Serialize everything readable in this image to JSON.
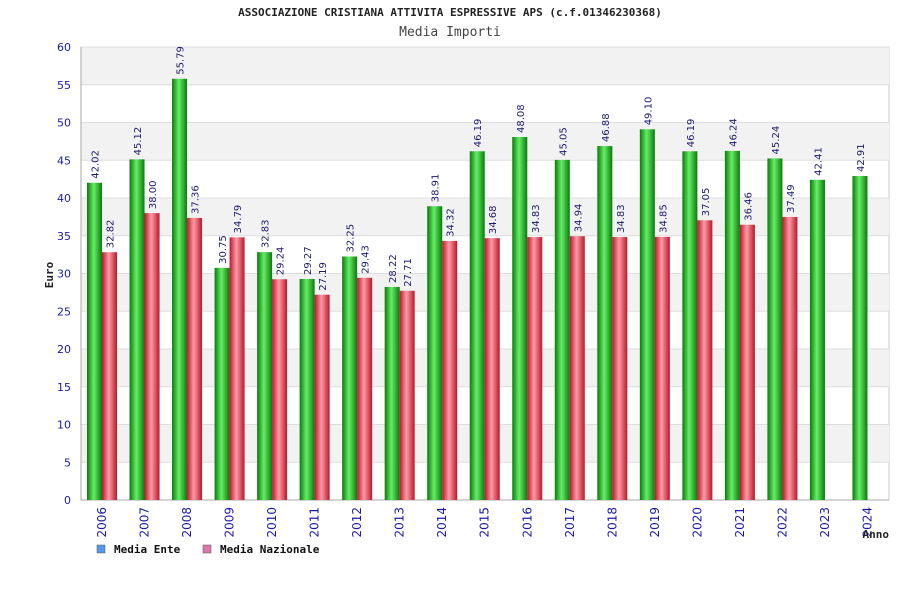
{
  "chart_data": {
    "type": "bar",
    "title": "ASSOCIAZIONE CRISTIANA ATTIVITA ESPRESSIVE APS (c.f.01346230368)",
    "subtitle": "Media Importi",
    "xlabel": "Anno",
    "ylabel": "Euro",
    "ylim": [
      0,
      60
    ],
    "yticks": [
      0,
      5,
      10,
      15,
      20,
      25,
      30,
      35,
      40,
      45,
      50,
      55,
      60
    ],
    "grid": true,
    "legend_position": "bottom-left",
    "categories": [
      "2006",
      "2007",
      "2008",
      "2009",
      "2010",
      "2011",
      "2012",
      "2013",
      "2014",
      "2015",
      "2016",
      "2017",
      "2018",
      "2019",
      "2020",
      "2021",
      "2022",
      "2023",
      "2024"
    ],
    "series": [
      {
        "name": "Media Ente",
        "color": "#22bb22",
        "legend_color": "#5599ee",
        "values": [
          42.02,
          45.12,
          55.79,
          30.75,
          32.83,
          29.27,
          32.25,
          28.22,
          38.91,
          46.19,
          48.08,
          45.05,
          46.88,
          49.1,
          46.19,
          46.24,
          45.24,
          42.41,
          42.91
        ],
        "labels": [
          "42.02",
          "45.12",
          "55.79",
          "30.75",
          "32.83",
          "29.27",
          "32.25",
          "28.22",
          "38.91",
          "46.19",
          "48.08",
          "45.05",
          "46.88",
          "49.10",
          "46.19",
          "46.24",
          "45.24",
          "42.41",
          "42.91"
        ]
      },
      {
        "name": "Media Nazionale",
        "color": "#dd3344",
        "legend_color": "#dd77aa",
        "values": [
          32.82,
          38.0,
          37.36,
          34.79,
          29.24,
          27.19,
          29.43,
          27.71,
          34.32,
          34.68,
          34.83,
          34.94,
          34.83,
          34.85,
          37.05,
          36.46,
          37.49,
          null,
          null
        ],
        "labels": [
          "32.82",
          "38.00",
          "37.36",
          "34.79",
          "29.24",
          "27.19",
          "29.43",
          "27.71",
          "34.32",
          "34.68",
          "34.83",
          "34.94",
          "34.83",
          "34.85",
          "37.05",
          "36.46",
          "37.49",
          "",
          ""
        ]
      }
    ]
  }
}
